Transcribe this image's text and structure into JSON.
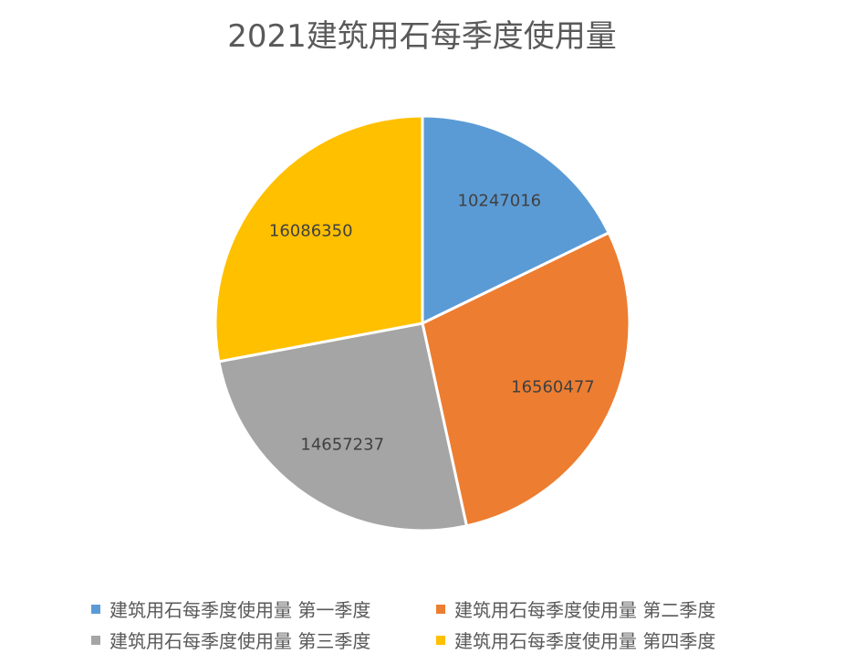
{
  "chart_data": {
    "type": "pie",
    "title": "2021建筑用石每季度使用量",
    "categories": [
      "建筑用石每季度使用量 第一季度",
      "建筑用石每季度使用量 第二季度",
      "建筑用石每季度使用量 第三季度",
      "建筑用石每季度使用量 第四季度"
    ],
    "values": [
      10247016,
      16560477,
      14657237,
      16086350
    ],
    "data_labels": [
      "10247016",
      "16560477",
      "14657237",
      "16086350"
    ],
    "colors": [
      "#5B9BD5",
      "#ED7D31",
      "#A5A5A5",
      "#FFC000"
    ],
    "legend_position": "bottom"
  }
}
